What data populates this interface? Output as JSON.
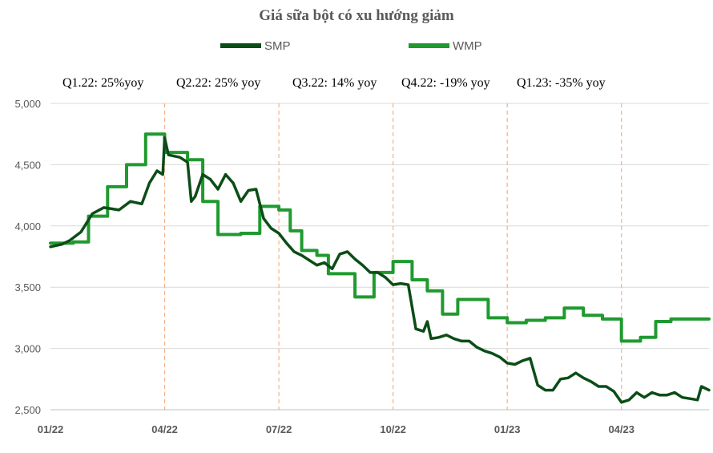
{
  "chart_data": {
    "type": "line",
    "title": "Giá sữa bột có xu hướng giảm",
    "ylim": [
      2500,
      5000
    ],
    "yticks": [
      "5,000",
      "4,500",
      "4,000",
      "3,500",
      "3,000",
      "2,500"
    ],
    "ytick_values": [
      5000,
      4500,
      4000,
      3500,
      3000,
      2500
    ],
    "xlim": [
      0,
      17.3
    ],
    "xtick_labels": [
      "01/22",
      "04/22",
      "07/22",
      "10/22",
      "01/23",
      "04/23"
    ],
    "xtick_values": [
      0,
      3,
      6,
      9,
      12,
      15
    ],
    "grid": {
      "horizontal": true,
      "vertical_dashed": true
    },
    "legend_position": "top",
    "annotations": [
      "Q1.22: 25%yoy",
      "Q2.22: 25% yoy",
      "Q3.22: 14% yoy",
      "Q4.22: -19% yoy",
      "Q1.23: -35% yoy"
    ],
    "series": [
      {
        "name": "SMP",
        "color": "#0b4d17",
        "style": "line",
        "x": [
          0,
          0.3,
          0.5,
          0.8,
          1.1,
          1.4,
          1.8,
          2.1,
          2.4,
          2.6,
          2.8,
          2.95,
          3.0,
          3.1,
          3.4,
          3.6,
          3.7,
          3.8,
          4.0,
          4.2,
          4.4,
          4.6,
          4.8,
          5.0,
          5.2,
          5.4,
          5.6,
          5.8,
          6.0,
          6.2,
          6.4,
          6.6,
          6.8,
          7.0,
          7.2,
          7.4,
          7.6,
          7.8,
          8.0,
          8.2,
          8.4,
          8.6,
          8.8,
          9.0,
          9.2,
          9.4,
          9.6,
          9.8,
          9.9,
          10.0,
          10.2,
          10.4,
          10.6,
          10.8,
          11.0,
          11.2,
          11.4,
          11.6,
          11.8,
          12.0,
          12.2,
          12.4,
          12.6,
          12.8,
          13.0,
          13.2,
          13.4,
          13.6,
          13.8,
          14.0,
          14.2,
          14.4,
          14.6,
          14.8,
          15.0,
          15.2,
          15.4,
          15.6,
          15.8,
          16.0,
          16.2,
          16.4,
          16.6,
          16.8,
          17.0,
          17.1,
          17.3
        ],
        "y": [
          3830,
          3850,
          3880,
          3950,
          4100,
          4150,
          4130,
          4200,
          4180,
          4350,
          4450,
          4420,
          4720,
          4580,
          4560,
          4520,
          4200,
          4240,
          4420,
          4380,
          4300,
          4420,
          4350,
          4200,
          4290,
          4300,
          4060,
          3980,
          3940,
          3860,
          3790,
          3760,
          3720,
          3680,
          3700,
          3650,
          3770,
          3790,
          3730,
          3680,
          3620,
          3620,
          3580,
          3520,
          3530,
          3520,
          3160,
          3140,
          3220,
          3080,
          3090,
          3110,
          3080,
          3060,
          3060,
          3010,
          2980,
          2960,
          2930,
          2880,
          2870,
          2900,
          2920,
          2700,
          2660,
          2660,
          2750,
          2760,
          2800,
          2760,
          2730,
          2690,
          2690,
          2650,
          2560,
          2580,
          2640,
          2600,
          2640,
          2620,
          2620,
          2640,
          2600,
          2590,
          2580,
          2690,
          2660
        ]
      },
      {
        "name": "WMP",
        "color": "#1f9a2f",
        "style": "step",
        "x": [
          0,
          0.6,
          1.0,
          1.5,
          2.0,
          2.5,
          3.0,
          3.6,
          4.0,
          4.4,
          5.0,
          5.5,
          6.0,
          6.3,
          6.6,
          7.0,
          7.3,
          7.6,
          8.0,
          8.5,
          9.0,
          9.5,
          9.9,
          10.3,
          10.7,
          11.0,
          11.5,
          12.0,
          12.5,
          13.0,
          13.5,
          14.0,
          14.5,
          15.0,
          15.5,
          15.9,
          16.3,
          16.6,
          17.3
        ],
        "y": [
          3860,
          3870,
          4080,
          4320,
          4500,
          4750,
          4600,
          4540,
          4200,
          3930,
          3940,
          4160,
          4130,
          3960,
          3800,
          3760,
          3610,
          3610,
          3420,
          3620,
          3710,
          3560,
          3470,
          3280,
          3400,
          3400,
          3250,
          3210,
          3230,
          3250,
          3330,
          3270,
          3240,
          3060,
          3090,
          3220,
          3240,
          3240,
          3240
        ]
      }
    ]
  }
}
